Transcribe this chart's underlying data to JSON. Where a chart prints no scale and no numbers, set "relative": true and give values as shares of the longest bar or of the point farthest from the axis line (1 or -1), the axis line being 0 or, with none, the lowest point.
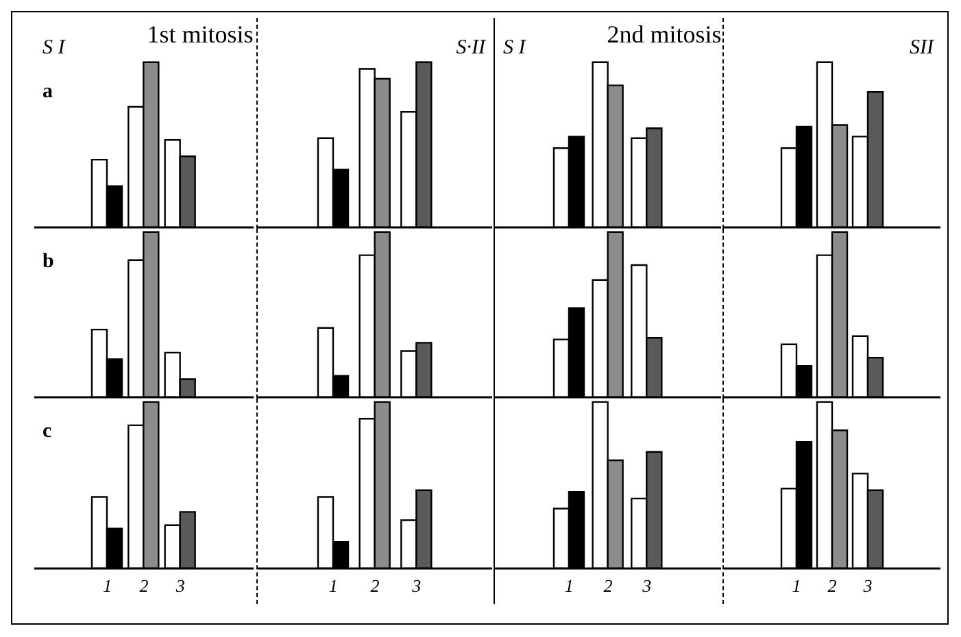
{
  "chart_data": [
    {
      "type": "bar",
      "relative": true,
      "title": "1st mitosis",
      "annotations": [
        "S I",
        "a"
      ],
      "categories": [
        null,
        null,
        null
      ],
      "series": [
        {
          "color": "#ffffff",
          "values": [
            0.41,
            0.73,
            0.53
          ]
        },
        {
          "colors": [
            "#000000",
            "#8c8c8c",
            "#5a5a5a"
          ],
          "values": [
            0.25,
            1,
            0.43
          ]
        }
      ]
    },
    {
      "type": "bar",
      "relative": true,
      "annotations": [
        "S·II"
      ],
      "categories": [
        null,
        null,
        null
      ],
      "series": [
        {
          "color": "#ffffff",
          "values": [
            0.54,
            0.96,
            0.7
          ]
        },
        {
          "colors": [
            "#000000",
            "#8c8c8c",
            "#5a5a5a"
          ],
          "values": [
            0.35,
            0.9,
            1
          ]
        }
      ]
    },
    {
      "type": "bar",
      "relative": true,
      "title": "2nd mitosis",
      "annotations": [
        "S I"
      ],
      "categories": [
        null,
        null,
        null
      ],
      "series": [
        {
          "color": "#ffffff",
          "values": [
            0.48,
            1,
            0.54
          ]
        },
        {
          "colors": [
            "#000000",
            "#8c8c8c",
            "#5a5a5a"
          ],
          "values": [
            0.55,
            0.86,
            0.6
          ]
        }
      ]
    },
    {
      "type": "bar",
      "relative": true,
      "annotations": [
        "SII"
      ],
      "categories": [
        null,
        null,
        null
      ],
      "series": [
        {
          "color": "#ffffff",
          "values": [
            0.48,
            1,
            0.55
          ]
        },
        {
          "colors": [
            "#000000",
            "#8c8c8c",
            "#5a5a5a"
          ],
          "values": [
            0.61,
            0.62,
            0.82
          ]
        }
      ]
    },
    {
      "type": "bar",
      "relative": true,
      "annotations": [
        "b"
      ],
      "categories": [
        null,
        null,
        null
      ],
      "series": [
        {
          "color": "#ffffff",
          "values": [
            0.41,
            0.83,
            0.27
          ]
        },
        {
          "colors": [
            "#000000",
            "#8c8c8c",
            "#5a5a5a"
          ],
          "values": [
            0.23,
            1,
            0.11
          ]
        }
      ]
    },
    {
      "type": "bar",
      "relative": true,
      "categories": [
        null,
        null,
        null
      ],
      "series": [
        {
          "color": "#ffffff",
          "values": [
            0.42,
            0.86,
            0.28
          ]
        },
        {
          "colors": [
            "#000000",
            "#8c8c8c",
            "#5a5a5a"
          ],
          "values": [
            0.13,
            1,
            0.33
          ]
        }
      ]
    },
    {
      "type": "bar",
      "relative": true,
      "categories": [
        null,
        null,
        null
      ],
      "series": [
        {
          "color": "#ffffff",
          "values": [
            0.35,
            0.71,
            0.8
          ]
        },
        {
          "colors": [
            "#000000",
            "#8c8c8c",
            "#5a5a5a"
          ],
          "values": [
            0.54,
            1,
            0.36
          ]
        }
      ]
    },
    {
      "type": "bar",
      "relative": true,
      "categories": [
        null,
        null,
        null
      ],
      "series": [
        {
          "color": "#ffffff",
          "values": [
            0.32,
            0.86,
            0.37
          ]
        },
        {
          "colors": [
            "#000000",
            "#8c8c8c",
            "#5a5a5a"
          ],
          "values": [
            0.19,
            1,
            0.24
          ]
        }
      ]
    },
    {
      "type": "bar",
      "relative": true,
      "annotations": [
        "c"
      ],
      "categories": [
        "1",
        "2",
        "3"
      ],
      "series": [
        {
          "color": "#ffffff",
          "values": [
            0.43,
            0.86,
            0.26
          ]
        },
        {
          "colors": [
            "#000000",
            "#8c8c8c",
            "#5a5a5a"
          ],
          "values": [
            0.24,
            1,
            0.34
          ]
        }
      ]
    },
    {
      "type": "bar",
      "relative": true,
      "categories": [
        "1",
        "2",
        "3"
      ],
      "series": [
        {
          "color": "#ffffff",
          "values": [
            0.43,
            0.9,
            0.29
          ]
        },
        {
          "colors": [
            "#000000",
            "#8c8c8c",
            "#5a5a5a"
          ],
          "values": [
            0.16,
            1,
            0.47
          ]
        }
      ]
    },
    {
      "type": "bar",
      "relative": true,
      "categories": [
        "1",
        "2",
        "3"
      ],
      "series": [
        {
          "color": "#ffffff",
          "values": [
            0.36,
            1,
            0.42
          ]
        },
        {
          "colors": [
            "#000000",
            "#8c8c8c",
            "#5a5a5a"
          ],
          "values": [
            0.46,
            0.65,
            0.7
          ]
        }
      ]
    },
    {
      "type": "bar",
      "relative": true,
      "categories": [
        "1",
        "2",
        "3"
      ],
      "series": [
        {
          "color": "#ffffff",
          "values": [
            0.48,
            1,
            0.57
          ]
        },
        {
          "colors": [
            "#000000",
            "#8c8c8c",
            "#5a5a5a"
          ],
          "values": [
            0.76,
            0.83,
            0.47
          ]
        }
      ]
    }
  ]
}
